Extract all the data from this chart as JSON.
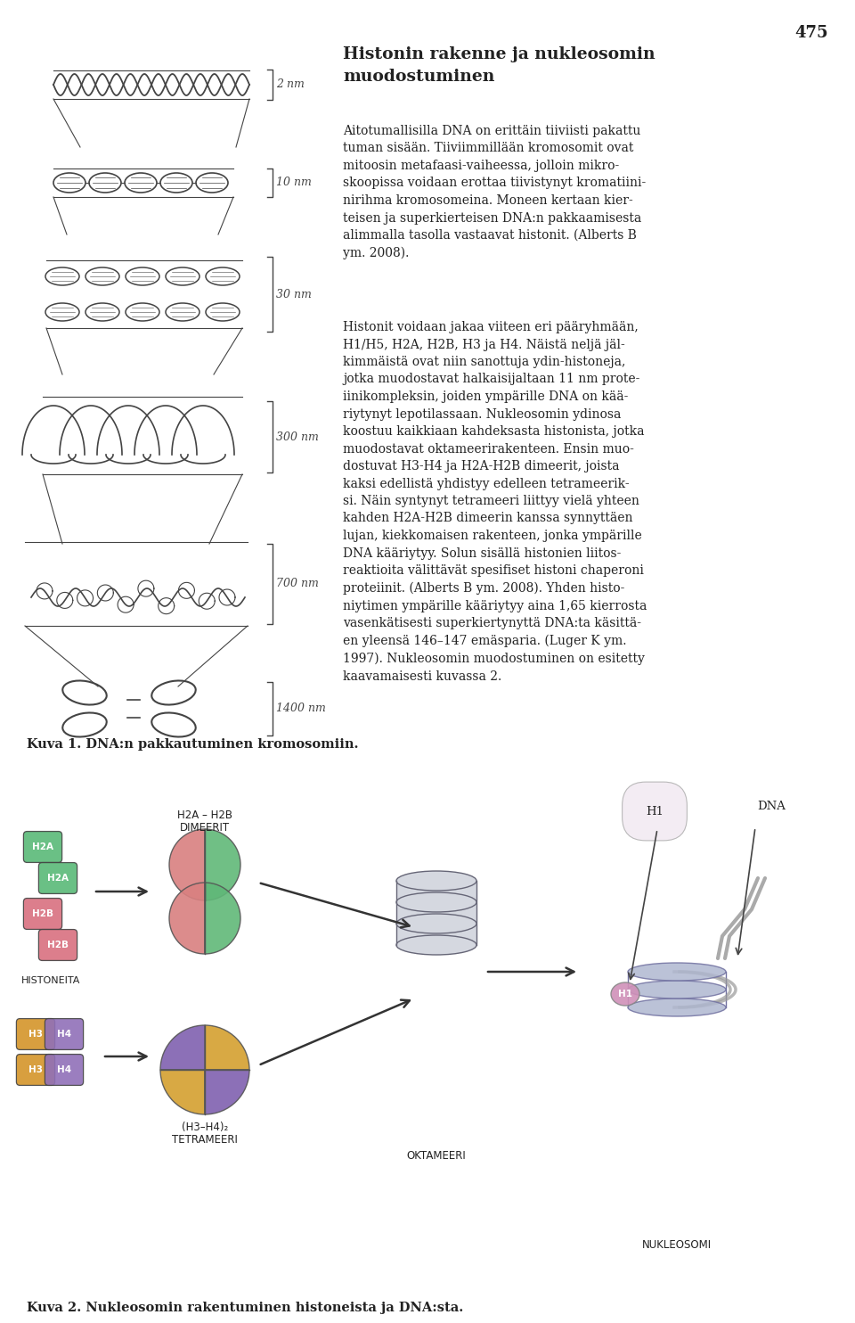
{
  "page_number": "475",
  "background_color": "#ffffff",
  "text_color": "#222222",
  "title": "Histonin rakenne ja nukleosomin\nmuodostuminen",
  "paragraph1": "Aitotumallisilla DNA on erittäin tiiviisti pakattu\ntuman sisään. Tiiviimmillään kromosomit ovat\nmitoosin metafaasi-vaiheessa, jolloin mikro-\nskoopissa voidaan erottaa tiivistynyt kromatiini-\nnirihma kromosomeina. Moneen kertaan kier-\nteisen ja superkierteisen DNA:n pakkaamisesta\nalimmalla tasolla vastaavat histonit. (Alberts B\nym. 2008).",
  "paragraph2": "Histonit voidaan jakaa viiteen eri pääryhmään,\nH1/H5, H2A, H2B, H3 ja H4. Näistä neljä jäl-\nkimmäistä ovat niin sanottuja ydin-histoneja,\njotka muodostavat halkaisijaltaan 11 nm prote-\niinikompleksin, joiden ympärille DNA on kää-\nriytynyt lepotilassaan. Nukleosomin ydinosa\nkoostuu kaikkiaan kahdeksasta histonista, jotka\nmuodostavat oktameerirakenteen. Ensin muo-\ndostuvat H3-H4 ja H2A-H2B dimeerit, joista\nkaksi edellistä yhdistyy edelleen tetrameerik-\nsi. Näin syntynyt tetrameeri liittyy vielä yhteen\nkahden H2A-H2B dimeerin kanssa synnyttäen\nlujan, kiekkomaisen rakenteen, jonka ympärille\nDNA kääriytyy. Solun sisällä histonien liitos-\nreaktioita välittävät spesifiset histoni chaperoni\nproteiinit. (Alberts B ym. 2008). Yhden histo-\nniytimen ympärille kääriytyy aina 1,65 kierrosta\nvasenkätisesti superkiertynyttä DNA:ta käsittä-\nen yleensä 146–147 emäsparia. (Luger K ym.\n1997). Nukleosomin muodostuminen on esitetty\nkaavamaisesti kuvassa 2.",
  "caption1": "Kuva 1. DNA:n pakkautuminen kromosomiin.",
  "caption2": "Kuva 2. Nukleosomin rakentuminen histoneista ja DNA:sta.",
  "lc": "#444444",
  "h2a_color": "#5aba78",
  "h2b_color": "#d97080",
  "h3_color": "#d4952a",
  "h4_color": "#9070b8",
  "dimer_pink": "#d98080",
  "dimer_green": "#60b878",
  "tetra_orange": "#d4a030",
  "tetra_purple": "#8060b0",
  "nuc_color": "#b0b8d0",
  "h1_color": "#d090b8"
}
